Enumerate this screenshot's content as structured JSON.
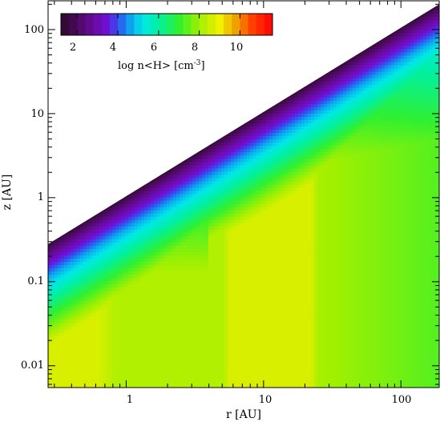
{
  "chart_data": {
    "type": "heatmap",
    "title": "",
    "xlabel": "r [AU]",
    "ylabel": "z [AU]",
    "x_scale": "log",
    "y_scale": "log",
    "xlim": [
      0.27,
      190
    ],
    "ylim": [
      0.0055,
      220
    ],
    "x_ticks": [
      {
        "value": 1,
        "label": "1"
      },
      {
        "value": 10,
        "label": "10"
      },
      {
        "value": 100,
        "label": "100"
      }
    ],
    "y_ticks": [
      {
        "value": 0.01,
        "label": "0.01"
      },
      {
        "value": 0.1,
        "label": "0.1"
      },
      {
        "value": 1,
        "label": "1"
      },
      {
        "value": 10,
        "label": "10"
      },
      {
        "value": 100,
        "label": "100"
      }
    ],
    "colorbar": {
      "label_main": "log n<H> [cm",
      "label_sup": "-3",
      "label_end": "]",
      "range": [
        1.2,
        11.6
      ],
      "ticks": [
        {
          "value": 2,
          "label": "2"
        },
        {
          "value": 4,
          "label": "4"
        },
        {
          "value": 6,
          "label": "6"
        },
        {
          "value": 8,
          "label": "8"
        },
        {
          "value": 10,
          "label": "10"
        }
      ],
      "stops": [
        {
          "v": 1.2,
          "color": "#2a0a28"
        },
        {
          "v": 2.0,
          "color": "#4a0a5a"
        },
        {
          "v": 2.8,
          "color": "#6a0aa0"
        },
        {
          "v": 3.5,
          "color": "#7010d8"
        },
        {
          "v": 4.0,
          "color": "#3050f0"
        },
        {
          "v": 4.6,
          "color": "#10a0f0"
        },
        {
          "v": 5.2,
          "color": "#00e8e8"
        },
        {
          "v": 6.0,
          "color": "#00f0a0"
        },
        {
          "v": 7.0,
          "color": "#30f030"
        },
        {
          "v": 8.0,
          "color": "#a0f000"
        },
        {
          "v": 9.0,
          "color": "#f0f000"
        },
        {
          "v": 9.8,
          "color": "#f0a000"
        },
        {
          "v": 10.6,
          "color": "#ff4000"
        },
        {
          "v": 11.6,
          "color": "#ff0000"
        }
      ]
    },
    "surface_boundary": [
      {
        "r": 0.27,
        "z": 0.28
      },
      {
        "r": 190,
        "z": 200
      }
    ]
  }
}
